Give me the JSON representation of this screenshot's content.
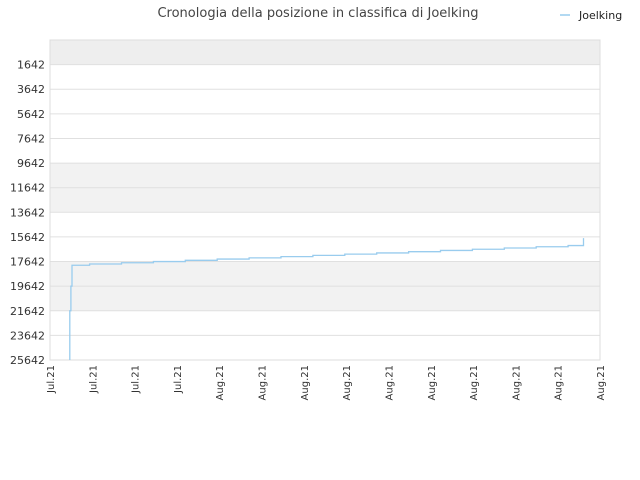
{
  "chart_data": {
    "type": "line",
    "title": "Cronologia della posizione in classifica di Joelking",
    "xlabel": "",
    "ylabel": "",
    "y_reversed": true,
    "ylim": [
      25642,
      -358
    ],
    "y_ticks": [
      "1642",
      "3642",
      "5642",
      "7642",
      "9642",
      "11642",
      "13642",
      "15642",
      "17642",
      "19642",
      "21642",
      "23642",
      "25642"
    ],
    "x_ticks": [
      "Jul.21",
      "Jul.21",
      "Jul.21",
      "Jul.21",
      "Aug.21",
      "Aug.21",
      "Aug.21",
      "Aug.21",
      "Aug.21",
      "Aug.21",
      "Aug.21",
      "Aug.21",
      "Aug.21",
      "Aug.21"
    ],
    "legend_position": "top-right",
    "grid": true,
    "series": [
      {
        "name": "Joelking",
        "color": "#99ccee",
        "x": [
          0.036,
          0.036,
          0.038,
          0.038,
          0.04,
          0.04,
          0.072,
          0.072,
          0.13,
          0.13,
          0.188,
          0.188,
          0.246,
          0.246,
          0.304,
          0.304,
          0.362,
          0.362,
          0.42,
          0.42,
          0.478,
          0.478,
          0.536,
          0.536,
          0.594,
          0.594,
          0.652,
          0.652,
          0.71,
          0.71,
          0.768,
          0.768,
          0.826,
          0.826,
          0.884,
          0.884,
          0.942,
          0.942,
          0.97,
          0.97
        ],
        "y": [
          25642,
          21642,
          21642,
          19642,
          19642,
          17942,
          17942,
          17842,
          17842,
          17742,
          17742,
          17642,
          17642,
          17542,
          17542,
          17442,
          17442,
          17342,
          17342,
          17242,
          17242,
          17142,
          17142,
          17042,
          17042,
          16942,
          16942,
          16842,
          16842,
          16742,
          16742,
          16642,
          16642,
          16542,
          16542,
          16442,
          16442,
          16342,
          16342,
          15742
        ]
      }
    ]
  }
}
